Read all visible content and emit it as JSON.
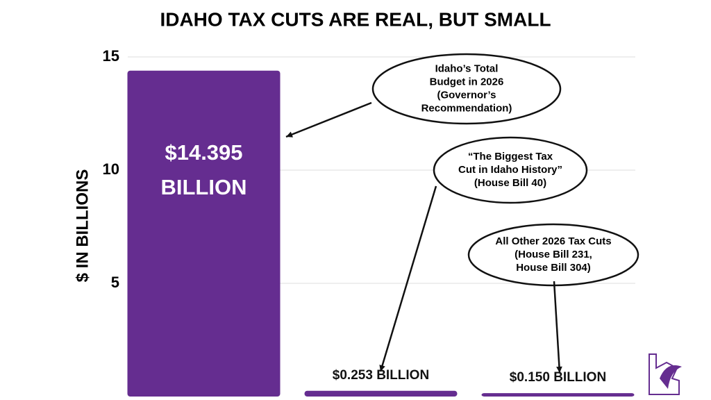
{
  "chart_data": {
    "type": "bar",
    "title": "IDAHO TAX CUTS ARE REAL, BUT SMALL",
    "y_label": "$ IN BILLIONS",
    "categories": [
      null,
      null,
      null
    ],
    "values": [
      14.395,
      0.253,
      0.15
    ],
    "value_labels": [
      "$14.395 BILLION",
      "$0.253 BILLION",
      "$0.150 BILLION"
    ],
    "color": "#652d90",
    "ylim": [
      0,
      15
    ],
    "yticks": [
      5,
      10,
      15
    ],
    "grid": true,
    "annotations": [
      [
        "Idaho’s Total",
        "Budget in 2026",
        "(Governor’s",
        "Recommendation)"
      ],
      [
        "“The Biggest Tax",
        "Cut in Idaho History”",
        "(House Bill 40)"
      ],
      [
        "All Other 2026 Tax Cuts",
        "(House Bill 231,",
        "House Bill 304)"
      ]
    ]
  }
}
